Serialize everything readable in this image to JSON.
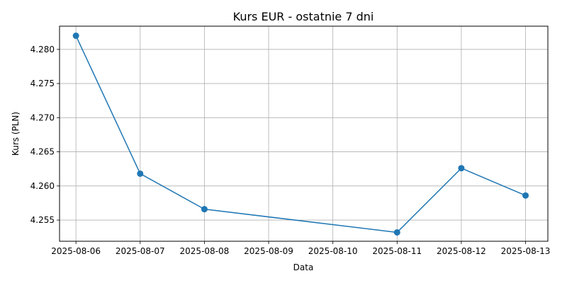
{
  "chart_data": {
    "type": "line",
    "title": "Kurs EUR - ostatnie 7 dni",
    "xlabel": "Data",
    "ylabel": "Kurs (PLN)",
    "x_ticks": [
      "2025-08-06",
      "2025-08-07",
      "2025-08-08",
      "2025-08-09",
      "2025-08-10",
      "2025-08-11",
      "2025-08-12",
      "2025-08-13"
    ],
    "y_ticks": [
      "4.255",
      "4.260",
      "4.265",
      "4.270",
      "4.275",
      "4.280"
    ],
    "xlim": [
      "2025-08-05T17:52",
      "2025-08-13T08:20"
    ],
    "ylim": [
      4.2519,
      4.2834
    ],
    "grid": true,
    "series": [
      {
        "color": "#1f77b4",
        "marker": "circle",
        "x": [
          "2025-08-06",
          "2025-08-07",
          "2025-08-08",
          "2025-08-11",
          "2025-08-12",
          "2025-08-13"
        ],
        "values": [
          4.282,
          4.2618,
          4.2566,
          4.2532,
          4.2626,
          4.2586
        ]
      }
    ]
  }
}
